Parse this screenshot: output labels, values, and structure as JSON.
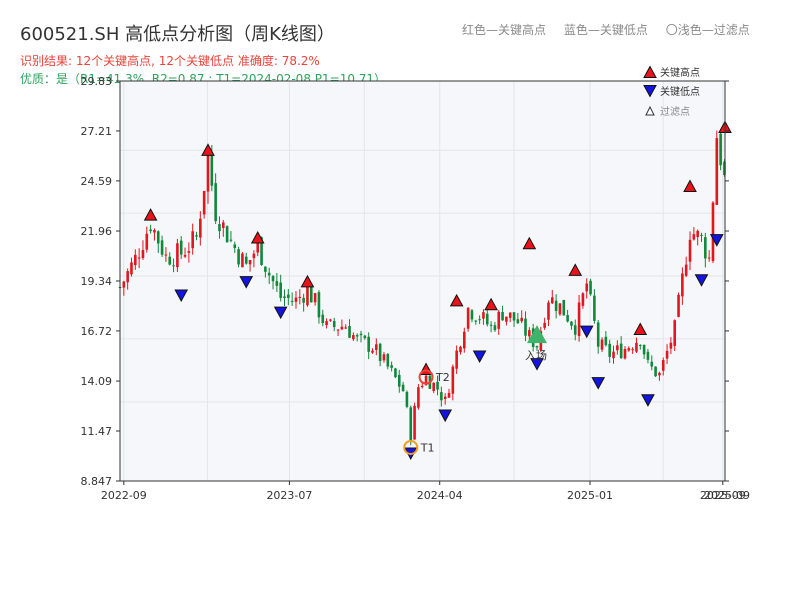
{
  "header": {
    "title": "600521.SH 高低点分析图（周K线图）",
    "result_line": "识别结果: 12个关键高点, 12个关键低点  准确度: 78.2%",
    "quality_line": "优质：是（R1=41.3%, R2=0.87 ; T1=2024-02-08 P1=10.71）"
  },
  "top_legend": {
    "red": "红色—关键高点",
    "blue": "蓝色—关键低点",
    "light": "〇浅色—过滤点"
  },
  "legend": {
    "high": "关键高点",
    "low": "关键低点",
    "filtered": "过滤点"
  },
  "colors": {
    "up": "#e0171e",
    "down": "#10883a",
    "high_marker": "#e8131b",
    "low_marker": "#1414e0",
    "t1": "#f0a020",
    "t2": "#e8443a",
    "entry": "#3db36b"
  },
  "chart_data": {
    "type": "candlestick",
    "title": "600521.SH 高低点分析图（周K线图）",
    "ylim": [
      8.847,
      29.83
    ],
    "y_ticks": [
      8.847,
      11.47,
      14.09,
      16.72,
      19.34,
      21.96,
      24.59,
      27.21,
      29.83
    ],
    "y_tick_labels": [
      "8.847",
      "11.47",
      "14.09",
      "16.72",
      "19.34",
      "21.96",
      "24.59",
      "27.21",
      "29.83"
    ],
    "x_ticks": [
      "2022-09",
      "2023-07",
      "2024-04",
      "2025-01",
      "2025-09"
    ],
    "x_tick_overlap": "2025-09",
    "x_range": [
      "2022-08-25",
      "2025-09-05"
    ],
    "grid": true,
    "legend_position": "top-right",
    "weekly_close": [
      [
        "2022-08-25",
        19.0
      ],
      [
        "2022-09-22",
        20.5
      ],
      [
        "2022-10-20",
        22.4
      ],
      [
        "2022-11-17",
        20.6
      ],
      [
        "2022-12-15",
        20.8
      ],
      [
        "2023-01-12",
        21.6
      ],
      [
        "2023-02-02",
        25.8
      ],
      [
        "2023-02-16",
        23.0
      ],
      [
        "2023-03-16",
        21.4
      ],
      [
        "2023-04-13",
        20.1
      ],
      [
        "2023-05-04",
        21.2
      ],
      [
        "2023-05-25",
        19.7
      ],
      [
        "2023-06-15",
        18.5
      ],
      [
        "2023-07-13",
        18.3
      ],
      [
        "2023-08-03",
        18.9
      ],
      [
        "2023-08-17",
        18.2
      ],
      [
        "2023-09-07",
        16.9
      ],
      [
        "2023-10-12",
        17.0
      ],
      [
        "2023-11-02",
        16.2
      ],
      [
        "2023-11-30",
        15.9
      ],
      [
        "2023-12-28",
        14.8
      ],
      [
        "2024-01-25",
        13.6
      ],
      [
        "2024-02-08",
        11.3
      ],
      [
        "2024-02-22",
        13.8
      ],
      [
        "2024-03-07",
        14.3
      ],
      [
        "2024-03-28",
        13.7
      ],
      [
        "2024-04-11",
        13.0
      ],
      [
        "2024-05-02",
        15.6
      ],
      [
        "2024-05-23",
        17.9
      ],
      [
        "2024-06-13",
        17.5
      ],
      [
        "2024-07-04",
        16.9
      ],
      [
        "2024-07-25",
        17.7
      ],
      [
        "2024-08-22",
        17.2
      ],
      [
        "2024-09-12",
        16.4
      ],
      [
        "2024-09-26",
        16.0
      ],
      [
        "2024-10-17",
        18.5
      ],
      [
        "2024-11-07",
        18.0
      ],
      [
        "2024-12-05",
        17.0
      ],
      [
        "2024-12-26",
        19.2
      ],
      [
        "2025-01-16",
        16.0
      ],
      [
        "2025-02-06",
        15.5
      ],
      [
        "2025-03-06",
        15.8
      ],
      [
        "2025-04-03",
        16.4
      ],
      [
        "2025-04-17",
        14.9
      ],
      [
        "2025-05-08",
        14.4
      ],
      [
        "2025-06-05",
        16.8
      ],
      [
        "2025-07-03",
        22.0
      ],
      [
        "2025-07-24",
        21.5
      ],
      [
        "2025-08-07",
        20.5
      ],
      [
        "2025-08-21",
        27.0
      ],
      [
        "2025-09-05",
        24.5
      ]
    ],
    "key_highs": [
      [
        "2022-10-20",
        22.4
      ],
      [
        "2023-02-02",
        25.8
      ],
      [
        "2023-05-04",
        21.2
      ],
      [
        "2023-08-03",
        18.9
      ],
      [
        "2024-03-07",
        14.3
      ],
      [
        "2024-05-02",
        17.9
      ],
      [
        "2024-07-04",
        17.7
      ],
      [
        "2024-09-12",
        20.9
      ],
      [
        "2024-12-05",
        19.5
      ],
      [
        "2025-04-03",
        16.4
      ],
      [
        "2025-07-03",
        23.9
      ],
      [
        "2025-09-05",
        27.0
      ]
    ],
    "key_lows": [
      [
        "2022-12-15",
        19.0
      ],
      [
        "2023-04-13",
        19.7
      ],
      [
        "2023-06-15",
        18.1
      ],
      [
        "2024-02-08",
        10.71
      ],
      [
        "2024-04-11",
        12.7
      ],
      [
        "2024-06-13",
        15.8
      ],
      [
        "2024-09-26",
        15.4
      ],
      [
        "2024-12-26",
        17.1
      ],
      [
        "2025-01-16",
        14.4
      ],
      [
        "2025-04-17",
        13.5
      ],
      [
        "2025-07-24",
        19.8
      ],
      [
        "2025-08-21",
        21.9
      ]
    ],
    "annotations": [
      {
        "label": "T1",
        "date": "2024-02-08",
        "value": 10.71
      },
      {
        "label": "T2",
        "date": "2024-03-07",
        "value": 14.3
      },
      {
        "label": "入场",
        "date": "2024-09-26",
        "value": 16.5
      }
    ]
  }
}
